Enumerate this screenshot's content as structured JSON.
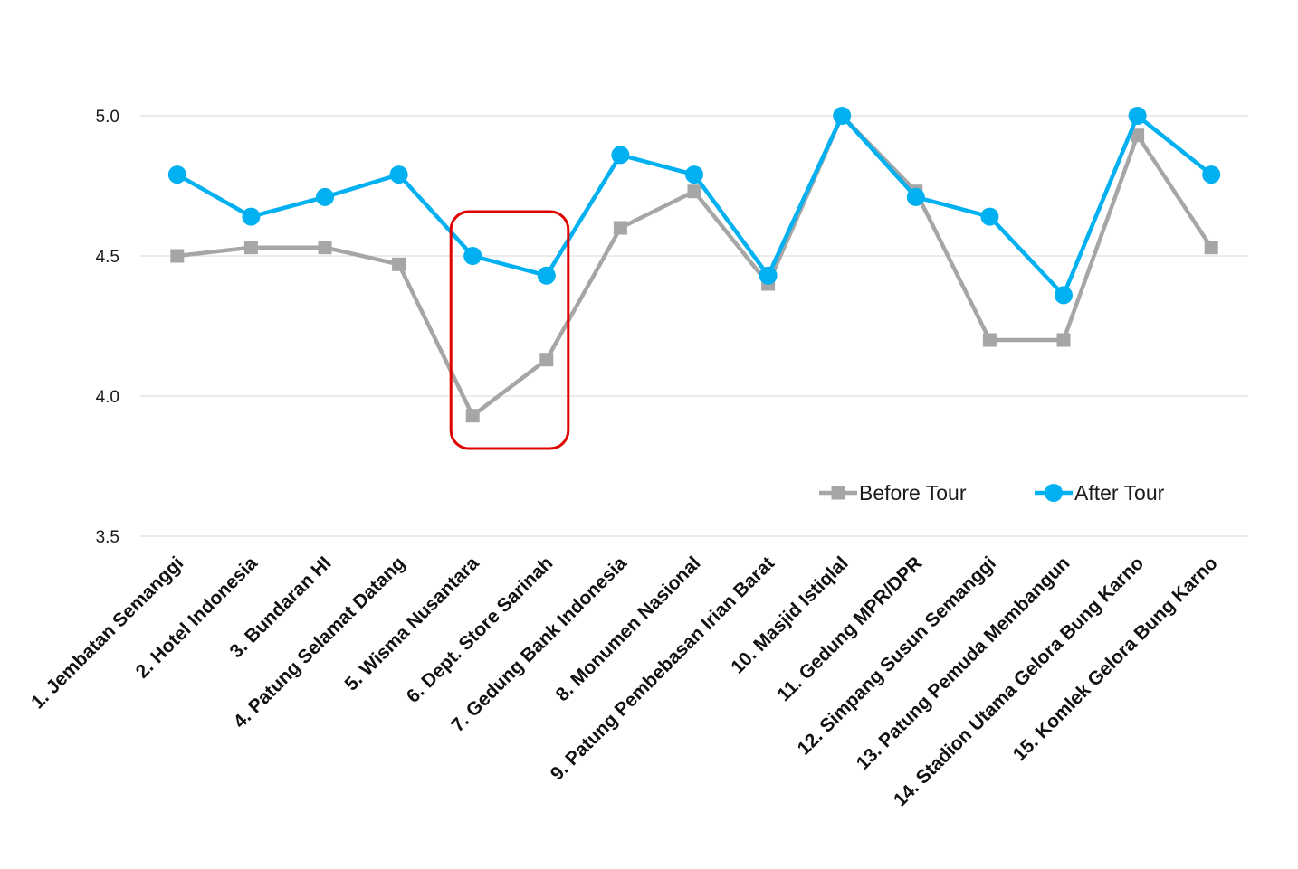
{
  "chart_data": {
    "type": "line",
    "title": "",
    "xlabel": "",
    "ylabel": "",
    "ylim": [
      3.5,
      5.0
    ],
    "yticks": [
      3.5,
      4.0,
      4.5,
      5.0
    ],
    "ytick_labels": [
      "3.5",
      "4.0",
      "4.5",
      "5.0"
    ],
    "grid": true,
    "legend_position": "bottom-right",
    "categories": [
      "1. Jembatan Semanggi",
      "2. Hotel Indonesia",
      "3. Bundaran HI",
      "4. Patung Selamat Datang",
      "5. Wisma Nusantara",
      "6. Dept. Store Sarinah",
      "7. Gedung Bank Indonesia",
      "8. Monumen Nasional",
      "9. Patung Pembebasan Irian Barat",
      "10. Masjid Istiqlal",
      "11. Gedung MPR/DPR",
      "12. Simpang Susun Semanggi",
      "13. Patung Pemuda Membangun",
      "14. Stadion Utama Gelora Bung Karno",
      "15. Komlek Gelora Bung Karno"
    ],
    "series": [
      {
        "name": "Before Tour",
        "color": "#a6a6a6",
        "marker": "square",
        "values": [
          4.5,
          4.53,
          4.53,
          4.47,
          3.93,
          4.13,
          4.6,
          4.73,
          4.4,
          5.0,
          4.73,
          4.2,
          4.2,
          4.93,
          4.53
        ]
      },
      {
        "name": "After Tour",
        "color": "#00b0f0",
        "marker": "circle",
        "values": [
          4.79,
          4.64,
          4.71,
          4.79,
          4.5,
          4.43,
          4.86,
          4.79,
          4.43,
          5.0,
          4.71,
          4.64,
          4.36,
          5.0,
          4.79
        ]
      }
    ],
    "highlight": {
      "shape": "rounded-rectangle",
      "color": "#e00000",
      "categories": [
        "5. Wisma Nusantara",
        "6. Dept. Store Sarinah"
      ]
    }
  }
}
